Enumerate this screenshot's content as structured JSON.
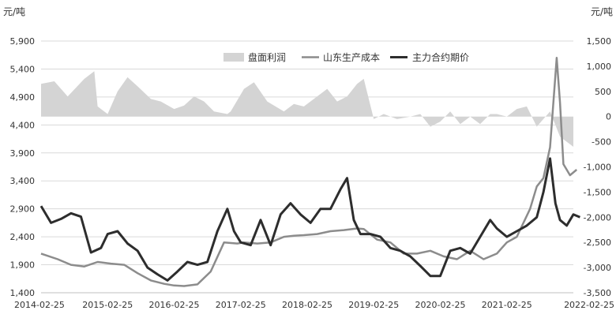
{
  "chart_data": {
    "type": "line",
    "left_unit": "元/吨",
    "right_unit": "元/吨",
    "ylim_left": [
      1400,
      5900
    ],
    "ylim_right": [
      -3500,
      1500
    ],
    "left_ticks": [
      "5,900",
      "5,400",
      "4,900",
      "4,400",
      "3,900",
      "3,400",
      "2,900",
      "2,400",
      "1,900",
      "1,400"
    ],
    "right_ticks": [
      "1,500",
      "1,000",
      "500",
      "0",
      "-500",
      "-1,000",
      "-1,500",
      "-2,000",
      "-2,500",
      "-3,000",
      "-3,500"
    ],
    "x_ticks": [
      "2014-02-25",
      "2015-02-25",
      "2016-02-25",
      "2017-02-25",
      "2018-02-25",
      "2019-02-25",
      "2020-02-25",
      "2021-02-25",
      "2022-02-25"
    ],
    "grid": "horizontal",
    "legend_position": "top-right",
    "series": [
      {
        "name": "盘面利润",
        "type": "area",
        "axis": "right",
        "color": "#d4d4d4",
        "x": [
          2014.15,
          2014.35,
          2014.55,
          2014.8,
          2014.95,
          2015.0,
          2015.15,
          2015.3,
          2015.45,
          2015.6,
          2015.8,
          2015.95,
          2016.15,
          2016.3,
          2016.45,
          2016.6,
          2016.75,
          2016.95,
          2017.0,
          2017.2,
          2017.35,
          2017.55,
          2017.8,
          2017.95,
          2018.1,
          2018.3,
          2018.45,
          2018.6,
          2018.75,
          2018.9,
          2019.0,
          2019.15,
          2019.3,
          2019.5,
          2019.7,
          2019.85,
          2020.0,
          2020.15,
          2020.3,
          2020.45,
          2020.6,
          2020.75,
          2020.9,
          2021.0,
          2021.15,
          2021.3,
          2021.45,
          2021.6,
          2021.8,
          2021.95,
          2022.15
        ],
        "y": [
          650,
          700,
          400,
          750,
          900,
          200,
          50,
          500,
          780,
          600,
          350,
          300,
          150,
          220,
          400,
          300,
          100,
          50,
          100,
          550,
          680,
          300,
          100,
          250,
          200,
          400,
          550,
          300,
          400,
          650,
          750,
          -50,
          50,
          -50,
          0,
          50,
          -200,
          -100,
          100,
          -150,
          0,
          -150,
          50,
          50,
          0,
          150,
          200,
          -200,
          100,
          -400,
          -600
        ]
      },
      {
        "name": "山东生产成本",
        "type": "line",
        "axis": "left",
        "color": "#8c8c8c",
        "x": [
          2014.15,
          2014.4,
          2014.6,
          2014.8,
          2015.0,
          2015.2,
          2015.4,
          2015.6,
          2015.8,
          2016.0,
          2016.15,
          2016.3,
          2016.5,
          2016.7,
          2016.9,
          2017.1,
          2017.2,
          2017.4,
          2017.6,
          2017.8,
          2017.95,
          2018.1,
          2018.3,
          2018.5,
          2018.7,
          2018.9,
          2019.0,
          2019.2,
          2019.4,
          2019.6,
          2019.8,
          2020.0,
          2020.2,
          2020.4,
          2020.6,
          2020.8,
          2021.0,
          2021.15,
          2021.3,
          2021.5,
          2021.6,
          2021.7,
          2021.8,
          2021.9,
          2021.95,
          2022.0,
          2022.1,
          2022.2
        ],
        "y": [
          2100,
          2000,
          1900,
          1870,
          1950,
          1920,
          1900,
          1750,
          1620,
          1560,
          1530,
          1520,
          1550,
          1780,
          2300,
          2280,
          2300,
          2280,
          2300,
          2400,
          2420,
          2430,
          2450,
          2500,
          2520,
          2550,
          2540,
          2350,
          2300,
          2100,
          2100,
          2150,
          2050,
          2000,
          2150,
          2000,
          2100,
          2300,
          2400,
          2900,
          3300,
          3450,
          4000,
          5600,
          4800,
          3700,
          3500,
          3600
        ]
      },
      {
        "name": "主力合约期价",
        "type": "line",
        "axis": "left",
        "color": "#2d2d2d",
        "x": [
          2014.15,
          2014.3,
          2014.45,
          2014.6,
          2014.75,
          2014.9,
          2015.05,
          2015.15,
          2015.3,
          2015.45,
          2015.6,
          2015.75,
          2015.9,
          2016.05,
          2016.2,
          2016.35,
          2016.5,
          2016.65,
          2016.8,
          2016.95,
          2017.05,
          2017.15,
          2017.3,
          2017.45,
          2017.6,
          2017.75,
          2017.9,
          2018.05,
          2018.2,
          2018.35,
          2018.5,
          2018.65,
          2018.75,
          2018.85,
          2018.95,
          2019.1,
          2019.25,
          2019.4,
          2019.55,
          2019.7,
          2019.85,
          2020.0,
          2020.15,
          2020.3,
          2020.45,
          2020.6,
          2020.75,
          2020.9,
          2021.0,
          2021.15,
          2021.3,
          2021.45,
          2021.6,
          2021.7,
          2021.8,
          2021.88,
          2021.95,
          2022.05,
          2022.15,
          2022.25
        ],
        "y": [
          2950,
          2650,
          2720,
          2820,
          2760,
          2120,
          2200,
          2450,
          2500,
          2280,
          2150,
          1850,
          1730,
          1620,
          1780,
          1950,
          1900,
          1950,
          2500,
          2900,
          2500,
          2300,
          2250,
          2700,
          2250,
          2800,
          3000,
          2800,
          2650,
          2900,
          2900,
          3250,
          3450,
          2700,
          2450,
          2450,
          2400,
          2200,
          2150,
          2050,
          1880,
          1700,
          1700,
          2150,
          2200,
          2100,
          2400,
          2700,
          2550,
          2400,
          2500,
          2600,
          2750,
          3200,
          3800,
          3000,
          2700,
          2600,
          2800,
          2750
        ]
      }
    ]
  }
}
